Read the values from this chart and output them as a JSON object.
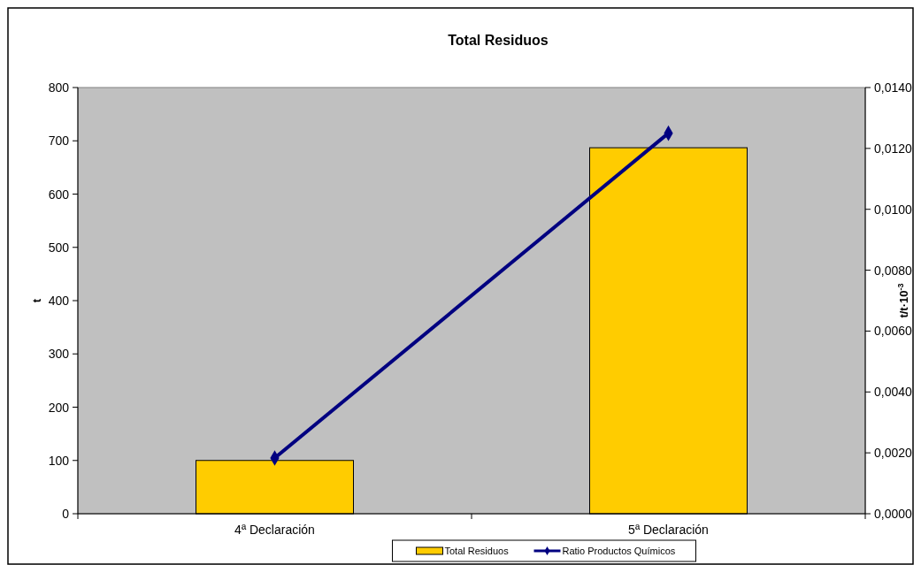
{
  "chart_data": {
    "type": "bar",
    "title": "Total Residuos",
    "ylabel": "t",
    "y2label": "t/t·10$^{-3}$",
    "categories": [
      "4ª Declaración",
      "5ª Declaración"
    ],
    "series": [
      {
        "name": "Total Residuos",
        "color": "#ffcc00",
        "values": [
          100,
          687
        ]
      },
      {
        "name": "Ratio Productos Químicos",
        "type": "line",
        "axis": "y2",
        "color": "#000080",
        "marker": "diamond",
        "values": [
          0.00183,
          0.0125
        ]
      }
    ],
    "ylim": [
      0,
      800
    ],
    "yticks": [
      0,
      100,
      200,
      300,
      400,
      500,
      600,
      700,
      800
    ],
    "y2lim": [
      0,
      0.014
    ],
    "y2ticks": [
      {
        "value": 0,
        "label": "0,0000"
      },
      {
        "value": 0.002,
        "label": "0,0020"
      },
      {
        "value": 0.004,
        "label": "0,0040"
      },
      {
        "value": 0.006,
        "label": "0,0060"
      },
      {
        "value": 0.008,
        "label": "0,0080"
      },
      {
        "value": 0.01,
        "label": "0,0100"
      },
      {
        "value": 0.012,
        "label": "0,0120"
      },
      {
        "value": 0.014,
        "label": "0,0140"
      }
    ],
    "grid": false,
    "legend": "bottom"
  }
}
